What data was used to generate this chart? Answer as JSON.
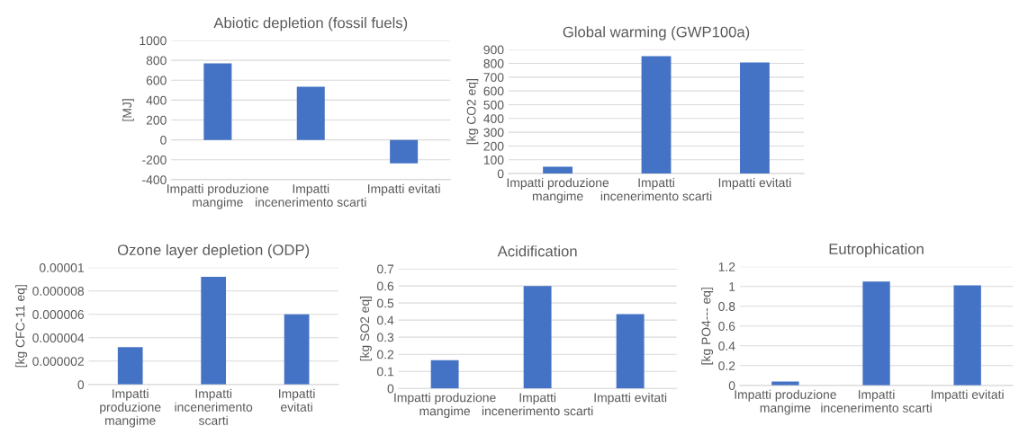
{
  "chart_data": [
    {
      "type": "bar",
      "title": "Abiotic depletion (fossil fuels)",
      "ylabel": "[MJ]",
      "categories": [
        "Impatti produzione mangime",
        "Impatti incenerimento scarti",
        "Impatti evitati"
      ],
      "values": [
        770,
        535,
        -235
      ],
      "color": "#4472c4",
      "ylim": [
        -400,
        1000
      ],
      "yticks": [
        -400,
        -200,
        0,
        200,
        400,
        600,
        800,
        1000
      ],
      "grid": "y",
      "legend": false
    },
    {
      "type": "bar",
      "title": "Global warming (GWP100a)",
      "ylabel": "[kg CO2 eq]",
      "categories": [
        "Impatti produzione mangime",
        "Impatti incenerimento scarti",
        "Impatti evitati"
      ],
      "values": [
        50,
        852,
        806
      ],
      "color": "#4472c4",
      "ylim": [
        0,
        900
      ],
      "yticks": [
        0,
        100,
        200,
        300,
        400,
        500,
        600,
        700,
        800,
        900
      ],
      "grid": "y",
      "legend": false
    },
    {
      "type": "bar",
      "title": "Ozone layer depletion (ODP)",
      "ylabel": "[kg CFC-11 eq]",
      "categories": [
        "Impatti produzione mangime",
        "Impatti incenerimento scarti",
        "Impatti evitati"
      ],
      "values": [
        3.2e-06,
        9.2e-06,
        6e-06
      ],
      "color": "#4472c4",
      "ylim": [
        0,
        1e-05
      ],
      "yticks": [
        0,
        {
          "value": 2e-06,
          "label": "0.000002"
        },
        {
          "value": 4e-06,
          "label": "0.000004"
        },
        {
          "value": 6e-06,
          "label": "0.000006"
        },
        {
          "value": 8e-06,
          "label": "0.000008"
        },
        {
          "value": 1e-05,
          "label": "0.00001"
        }
      ],
      "grid": "y",
      "legend": false
    },
    {
      "type": "bar",
      "title": "Acidification",
      "ylabel": "[kg SO2 eq]",
      "categories": [
        "Impatti produzione mangime",
        "Impatti incenerimento scarti",
        "Impatti evitati"
      ],
      "values": [
        0.165,
        0.6,
        0.435
      ],
      "color": "#4472c4",
      "ylim": [
        0,
        0.7
      ],
      "yticks": [
        0,
        0.1,
        0.2,
        0.3,
        0.4,
        0.5,
        0.6,
        0.7
      ],
      "grid": "y",
      "legend": false
    },
    {
      "type": "bar",
      "title": "Eutrophication",
      "ylabel": "[kg PO4--- eq]",
      "categories": [
        "Impatti produzione mangime",
        "Impatti incenerimento scarti",
        "Impatti evitati"
      ],
      "values": [
        0.04,
        1.05,
        1.01
      ],
      "color": "#4472c4",
      "ylim": [
        0,
        1.2
      ],
      "yticks": [
        0,
        0.2,
        0.4,
        0.6,
        0.8,
        1,
        1.2
      ],
      "grid": "y",
      "legend": false
    }
  ]
}
